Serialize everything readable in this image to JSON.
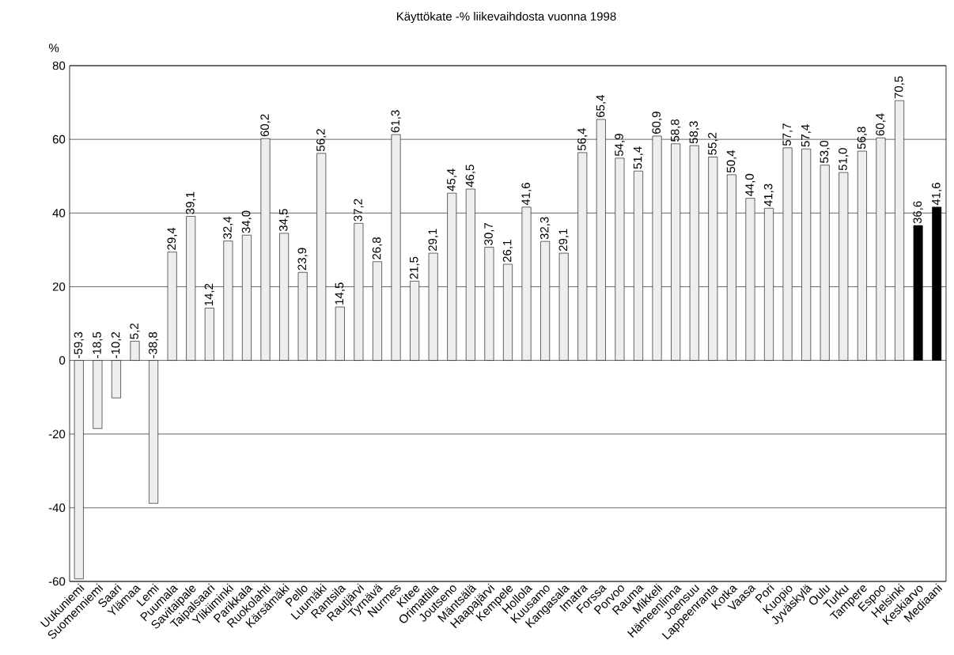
{
  "chart_data": {
    "type": "bar",
    "title": "Käyttökate -% liikevaihdosta vuonna 1998",
    "ylabel": "%",
    "categories": [
      "Uukuniemi",
      "Suomenniemi",
      "Saari",
      "Ylämaa",
      "Lemi",
      "Puumala",
      "Savitaipale",
      "Taipalsaari",
      "Ylikiiminki",
      "Parikkala",
      "Ruokolahti",
      "Kärsämäki",
      "Pello",
      "Luumäki",
      "Rantsila",
      "Rautjärvi",
      "Tyrnävä",
      "Nurmes",
      "Kitee",
      "Orimattila",
      "Joutseno",
      "Mäntsälä",
      "Haapajärvi",
      "Kempele",
      "Hollola",
      "Kuusamo",
      "Kangasala",
      "Imatra",
      "Forssa",
      "Porvoo",
      "Rauma",
      "Mikkeli",
      "Hämeenlinna",
      "Joensuu",
      "Lappeenranta",
      "Kotka",
      "Vaasa",
      "Pori",
      "Kuopio",
      "Jyväskylä",
      "Oulu",
      "Turku",
      "Tampere",
      "Espoo",
      "Helsinki",
      "Keskiarvo",
      "Mediaani"
    ],
    "values": [
      -59.3,
      -18.5,
      -10.2,
      5.2,
      -38.8,
      29.4,
      39.1,
      14.2,
      32.4,
      34.0,
      60.2,
      34.5,
      23.9,
      56.2,
      14.5,
      37.2,
      26.8,
      61.3,
      21.5,
      29.1,
      45.4,
      46.5,
      30.7,
      26.1,
      41.6,
      32.3,
      29.1,
      56.4,
      65.4,
      54.9,
      51.4,
      60.9,
      58.8,
      58.3,
      55.2,
      50.4,
      44.0,
      41.3,
      57.7,
      57.4,
      53.0,
      51.0,
      56.8,
      60.4,
      70.5,
      36.6,
      41.6
    ],
    "value_labels": [
      "-59,3",
      "-18,5",
      "-10,2",
      "5,2",
      "-38,8",
      "29,4",
      "39,1",
      "14,2",
      "32,4",
      "34,0",
      "60,2",
      "34,5",
      "23,9",
      "56,2",
      "14,5",
      "37,2",
      "26,8",
      "61,3",
      "21,5",
      "29,1",
      "45,4",
      "46,5",
      "30,7",
      "26,1",
      "41,6",
      "32,3",
      "29,1",
      "56,4",
      "65,4",
      "54,9",
      "51,4",
      "60,9",
      "58,8",
      "58,3",
      "55,2",
      "50,4",
      "44,0",
      "41,3",
      "57,7",
      "57,4",
      "53,0",
      "51,0",
      "56,8",
      "60,4",
      "70,5",
      "36,6",
      "41,6"
    ],
    "colors": [
      "#eeeeee",
      "#eeeeee",
      "#eeeeee",
      "#eeeeee",
      "#eeeeee",
      "#eeeeee",
      "#eeeeee",
      "#eeeeee",
      "#eeeeee",
      "#eeeeee",
      "#eeeeee",
      "#eeeeee",
      "#eeeeee",
      "#eeeeee",
      "#eeeeee",
      "#eeeeee",
      "#eeeeee",
      "#eeeeee",
      "#eeeeee",
      "#eeeeee",
      "#eeeeee",
      "#eeeeee",
      "#eeeeee",
      "#eeeeee",
      "#eeeeee",
      "#eeeeee",
      "#eeeeee",
      "#eeeeee",
      "#eeeeee",
      "#eeeeee",
      "#eeeeee",
      "#eeeeee",
      "#eeeeee",
      "#eeeeee",
      "#eeeeee",
      "#eeeeee",
      "#eeeeee",
      "#eeeeee",
      "#eeeeee",
      "#eeeeee",
      "#eeeeee",
      "#eeeeee",
      "#eeeeee",
      "#eeeeee",
      "#eeeeee",
      "#000000",
      "#000000"
    ],
    "ylim": [
      -60,
      80
    ],
    "yticks": [
      -60,
      -40,
      -20,
      0,
      20,
      40,
      60,
      80
    ],
    "grid": "y"
  }
}
